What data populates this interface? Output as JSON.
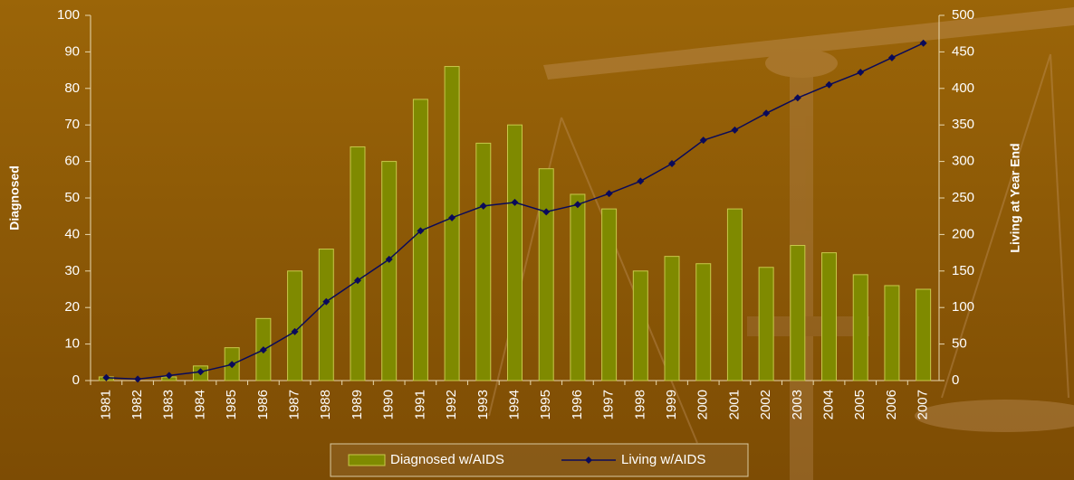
{
  "chart_data": {
    "type": "bar-line",
    "ylabel": "Diagnosed",
    "y2label": "Living at Year End",
    "categories": [
      "1981",
      "1982",
      "1983",
      "1984",
      "1985",
      "1986",
      "1987",
      "1988",
      "1989",
      "1990",
      "1991",
      "1992",
      "1993",
      "1994",
      "1995",
      "1996",
      "1997",
      "1998",
      "1999",
      "2000",
      "2001",
      "2002",
      "2003",
      "2004",
      "2005",
      "2006",
      "2007"
    ],
    "series": [
      {
        "name": "Diagnosed w/AIDS",
        "type": "bar",
        "color": "#7f8a00",
        "values": [
          1,
          0,
          1,
          4,
          9,
          17,
          30,
          36,
          64,
          60,
          77,
          86,
          65,
          70,
          58,
          51,
          47,
          30,
          34,
          32,
          47,
          31,
          37,
          35,
          29,
          26,
          25
        ]
      },
      {
        "name": "Living w/AIDS",
        "type": "line",
        "axis": "y2",
        "color": "#0a0a5a",
        "values": [
          4,
          2,
          7,
          12,
          22,
          42,
          67,
          108,
          137,
          166,
          205,
          223,
          239,
          244,
          231,
          241,
          256,
          273,
          297,
          329,
          343,
          366,
          387,
          405,
          422,
          442,
          462
        ]
      }
    ],
    "ylim": [
      0,
      100
    ],
    "yticks": [
      0,
      10,
      20,
      30,
      40,
      50,
      60,
      70,
      80,
      90,
      100
    ],
    "y2lim": [
      0,
      500
    ],
    "y2ticks": [
      0,
      50,
      100,
      150,
      200,
      250,
      300,
      350,
      400,
      450,
      500
    ],
    "legend": "bottom"
  }
}
